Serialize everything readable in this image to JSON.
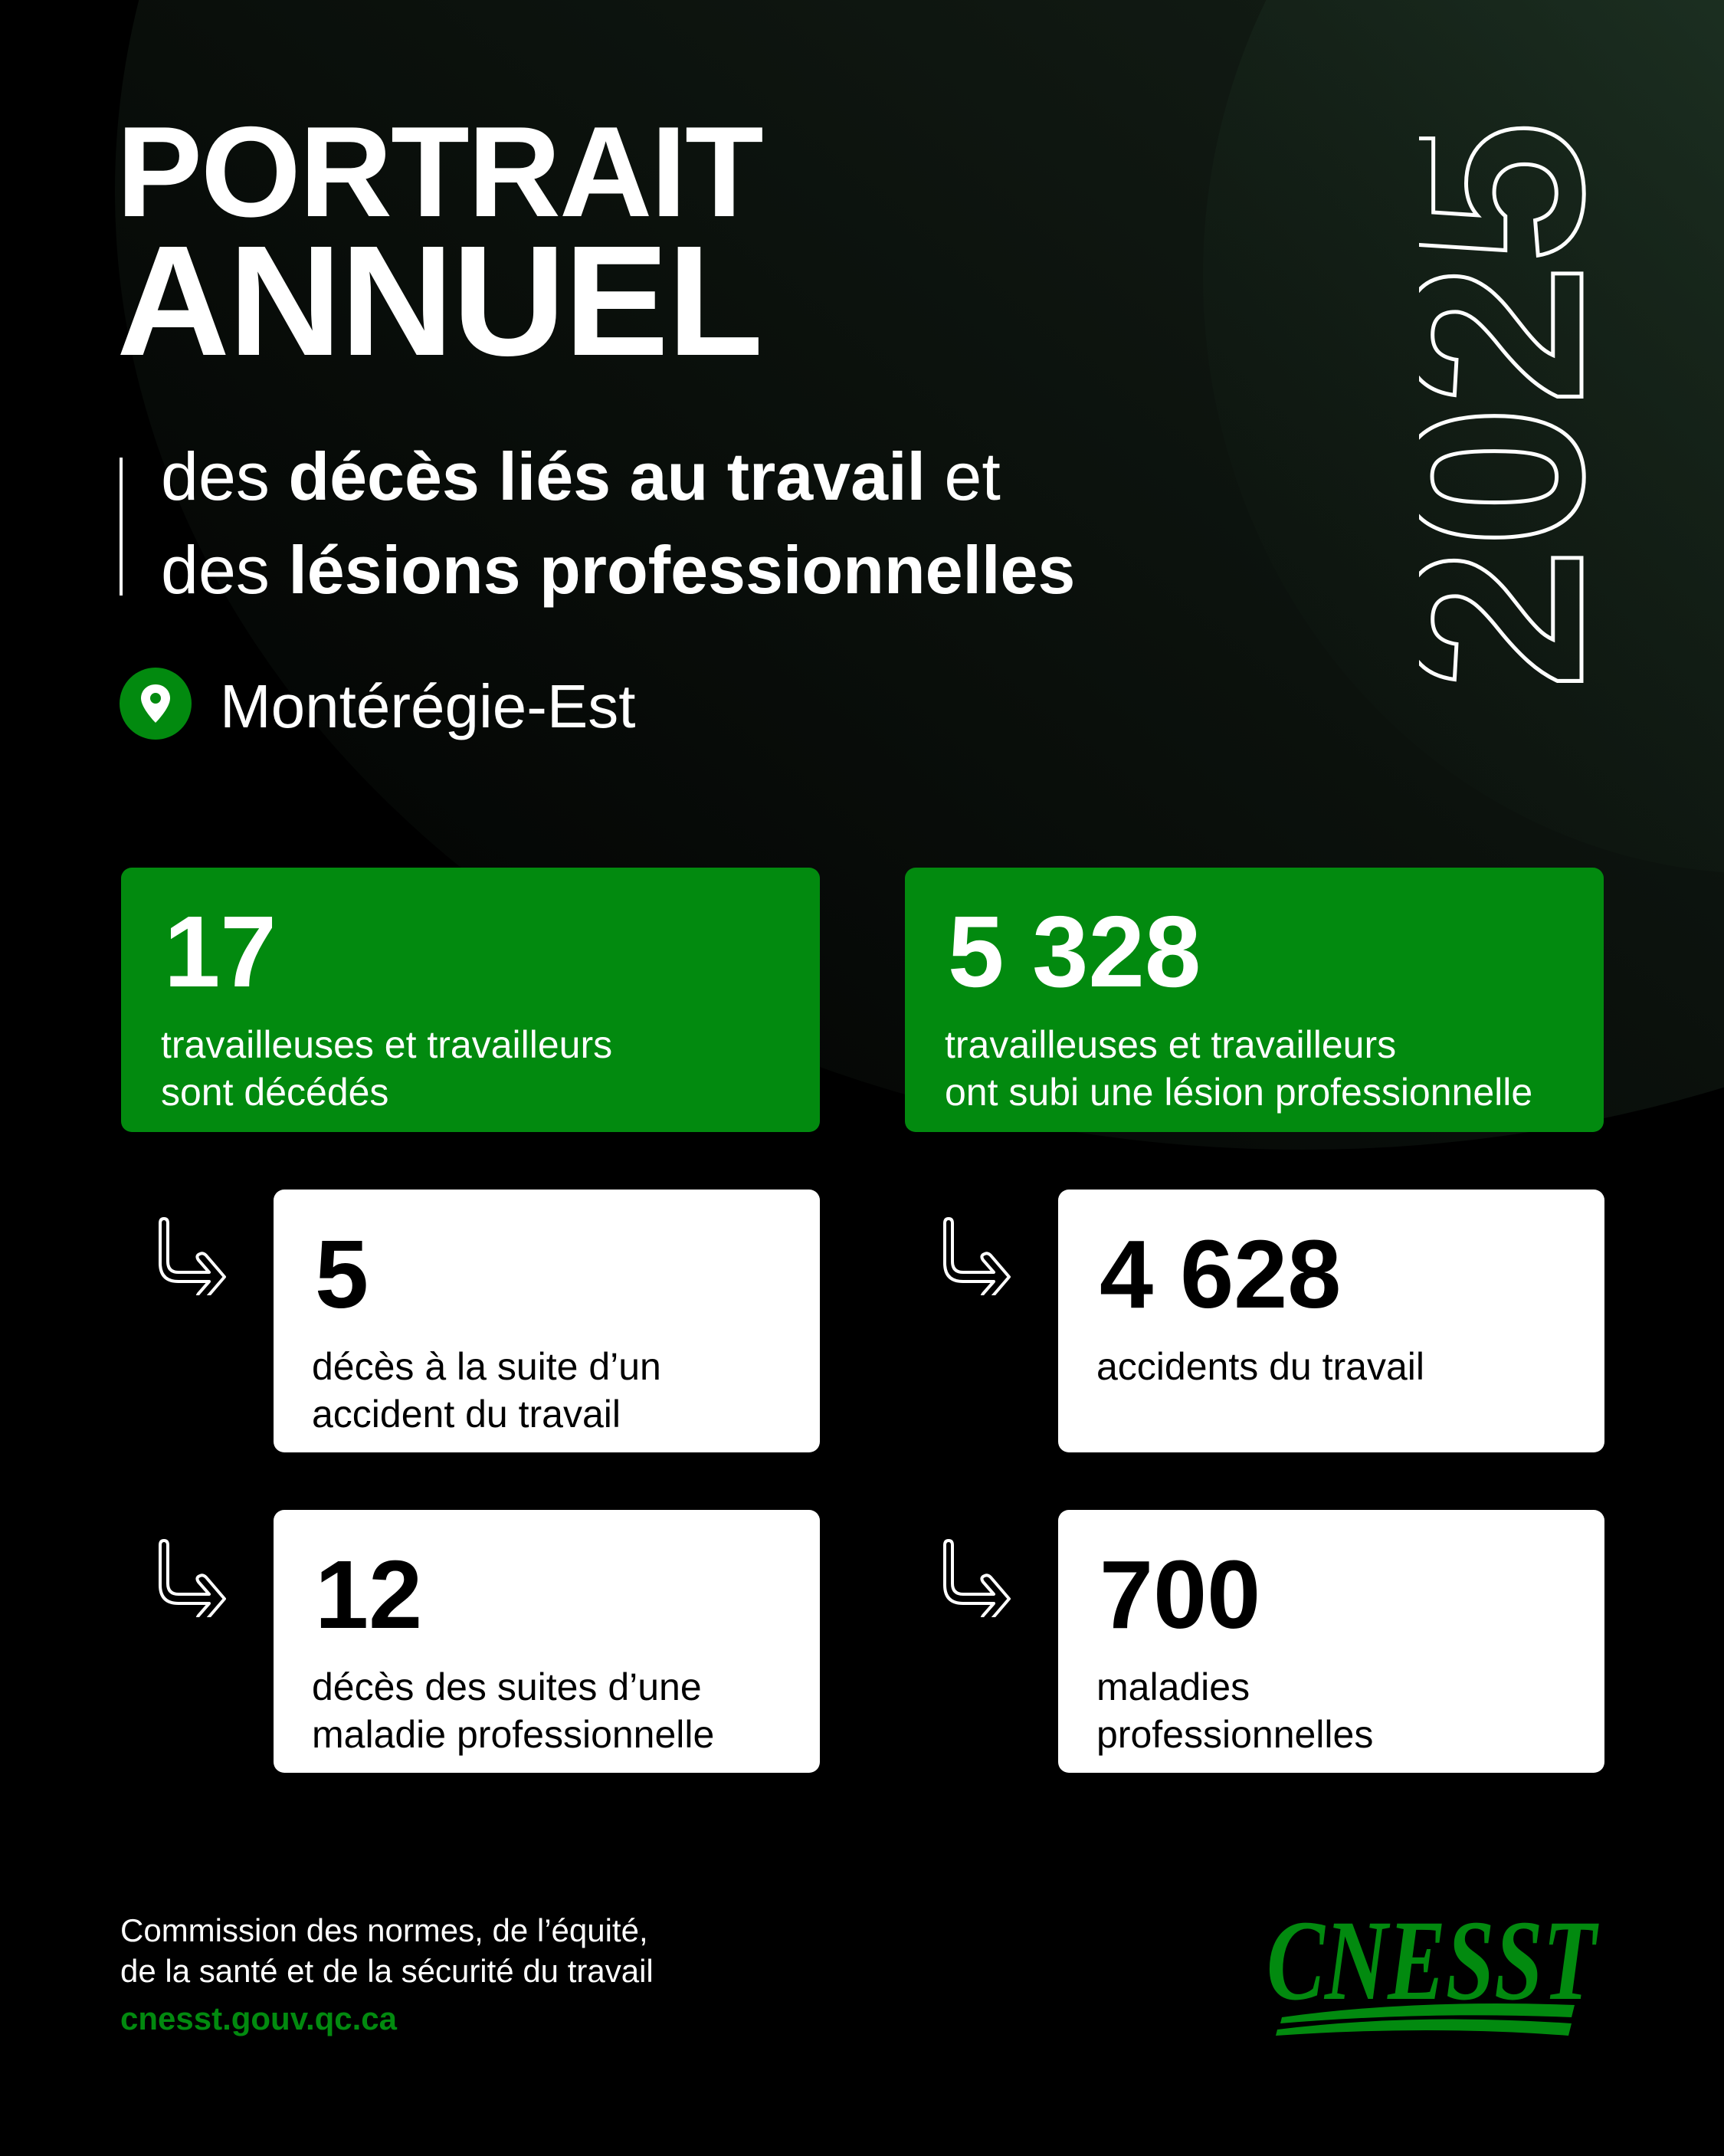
{
  "header": {
    "title_line1": "PORTRAIT",
    "title_line2": "ANNUEL",
    "subtitle_line1": {
      "pre": "des ",
      "bold": "décès liés au travail",
      "post": " et"
    },
    "subtitle_line2": {
      "pre": "des ",
      "bold": "lésions professionnelles"
    },
    "region": "Montérégie-Est",
    "region_icon": "location-pin-icon",
    "year": "2025"
  },
  "colors": {
    "brand_green": "#028a0f",
    "background": "#000000",
    "card": "#ffffff"
  },
  "stats": {
    "deaths": {
      "value": "17",
      "label_line1": "travailleuses et travailleurs",
      "label_line2": "sont décédés",
      "breakdown": [
        {
          "value": "5",
          "label_line1": "décès à la suite d’un",
          "label_line2": "accident du travail"
        },
        {
          "value": "12",
          "label_line1": "décès des suites d’une",
          "label_line2": "maladie professionnelle"
        }
      ]
    },
    "injuries": {
      "value": "5 328",
      "label_line1": "travailleuses et travailleurs",
      "label_line2": "ont subi une lésion professionnelle",
      "breakdown": [
        {
          "value": "4 628",
          "label_line1": "accidents du travail",
          "label_line2": ""
        },
        {
          "value": "700",
          "label_line1": "maladies",
          "label_line2": "professionnelles"
        }
      ]
    }
  },
  "footer": {
    "org_line1": "Commission des normes, de l’équité,",
    "org_line2": "de la santé et de la sécurité du travail",
    "url": "cnesst.gouv.qc.ca",
    "logo": "CNESST"
  }
}
